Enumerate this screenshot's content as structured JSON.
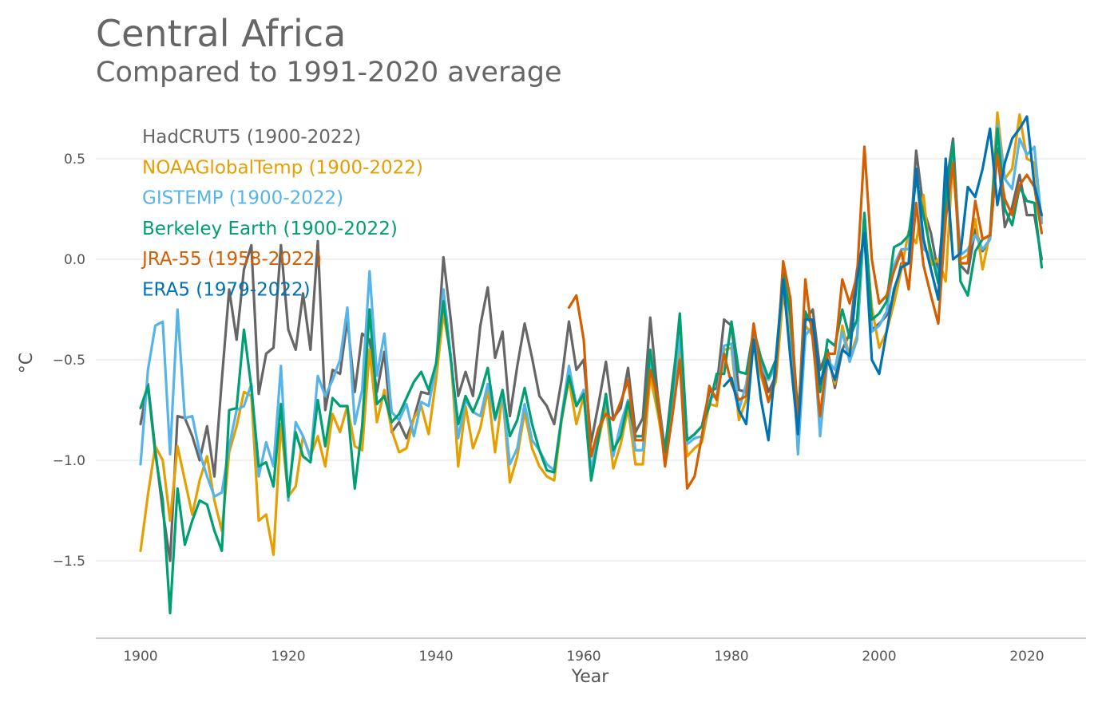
{
  "title": "Central Africa",
  "subtitle": "Compared to 1991-2020 average",
  "chart_data": {
    "type": "line",
    "title": "Central Africa",
    "subtitle": "Compared to 1991-2020 average",
    "xlabel": "Year",
    "ylabel": "°C",
    "xlim": [
      1897,
      2025
    ],
    "ylim": [
      -1.88,
      0.8
    ],
    "xticks": [
      1900,
      1920,
      1940,
      1960,
      1980,
      2000,
      2020
    ],
    "yticks": [
      0.5,
      0.0,
      -0.5,
      -1.0,
      -1.5
    ],
    "ytick_labels": [
      "0.5",
      "0.0",
      "−0.5",
      "−1.0",
      "−1.5"
    ],
    "grid": "horizontal",
    "legend_placement": "top-left",
    "series": [
      {
        "name": "HadCRUT5 (1900-2022)",
        "color": "#666666",
        "start": 1900,
        "values": [
          -0.82,
          -0.62,
          -0.95,
          -1.25,
          -1.5,
          -0.78,
          -0.79,
          -0.88,
          -1.0,
          -0.83,
          -1.08,
          -0.6,
          -0.15,
          -0.4,
          -0.05,
          0.07,
          -0.67,
          -0.47,
          -0.44,
          0.07,
          -0.35,
          -0.45,
          -0.17,
          -0.45,
          0.09,
          -0.75,
          -0.55,
          -0.57,
          -0.3,
          -0.66,
          -0.37,
          -0.4,
          -0.66,
          -0.46,
          -0.86,
          -0.81,
          -0.89,
          -0.79,
          -0.66,
          -0.67,
          -0.55,
          0.01,
          -0.3,
          -0.68,
          -0.56,
          -0.68,
          -0.33,
          -0.14,
          -0.49,
          -0.36,
          -0.78,
          -0.53,
          -0.32,
          -0.49,
          -0.68,
          -0.73,
          -0.82,
          -0.6,
          -0.31,
          -0.55,
          -0.5,
          -0.91,
          -0.72,
          -0.51,
          -0.79,
          -0.74,
          -0.54,
          -0.86,
          -0.79,
          -0.29,
          -0.67,
          -0.95,
          -0.62,
          -0.32,
          -0.9,
          -0.87,
          -0.83,
          -0.66,
          -0.64,
          -0.3,
          -0.33,
          -0.65,
          -0.66,
          -0.37,
          -0.52,
          -0.66,
          -0.58,
          -0.1,
          -0.26,
          -0.77,
          -0.3,
          -0.25,
          -0.55,
          -0.45,
          -0.64,
          -0.45,
          -0.37,
          -0.05,
          0.1,
          -0.35,
          -0.32,
          -0.28,
          -0.18,
          -0.02,
          -0.02,
          0.54,
          0.25,
          0.13,
          -0.07,
          0.35,
          0.6,
          -0.03,
          -0.07,
          0.15,
          0.04,
          0.1,
          0.55,
          0.16,
          0.26,
          0.42,
          0.22,
          0.22,
          0.0
        ]
      },
      {
        "name": "NOAAGlobalTemp (1900-2022)",
        "color": "#E69F00",
        "start": 1900,
        "values": [
          -1.45,
          -1.17,
          -0.93,
          -1.0,
          -1.3,
          -0.93,
          -1.1,
          -1.27,
          -1.1,
          -0.98,
          -1.2,
          -1.35,
          -0.96,
          -0.83,
          -0.66,
          -0.68,
          -1.3,
          -1.27,
          -1.47,
          -0.82,
          -1.18,
          -1.13,
          -0.88,
          -0.98,
          -0.88,
          -1.03,
          -0.77,
          -0.86,
          -0.73,
          -0.93,
          -0.95,
          -0.45,
          -0.81,
          -0.65,
          -0.85,
          -0.96,
          -0.94,
          -0.79,
          -0.73,
          -0.87,
          -0.6,
          -0.27,
          -0.48,
          -1.03,
          -0.73,
          -0.94,
          -0.84,
          -0.65,
          -0.96,
          -0.67,
          -1.11,
          -0.98,
          -0.76,
          -0.94,
          -1.03,
          -1.08,
          -1.1,
          -0.8,
          -0.6,
          -0.82,
          -0.68,
          -1.05,
          -0.9,
          -0.73,
          -1.04,
          -0.92,
          -0.74,
          -1.02,
          -1.02,
          -0.58,
          -0.76,
          -0.98,
          -0.75,
          -0.43,
          -0.98,
          -0.94,
          -0.91,
          -0.72,
          -0.73,
          -0.45,
          -0.44,
          -0.8,
          -0.7,
          -0.42,
          -0.58,
          -0.7,
          -0.61,
          -0.18,
          -0.35,
          -0.93,
          -0.33,
          -0.38,
          -0.79,
          -0.48,
          -0.62,
          -0.33,
          -0.49,
          -0.38,
          0.19,
          -0.24,
          -0.44,
          -0.36,
          -0.22,
          -0.05,
          0.14,
          0.08,
          0.32,
          -0.03,
          0.0,
          -0.11,
          0.52,
          0.0,
          0.02,
          0.2,
          -0.05,
          0.13,
          0.73,
          0.4,
          0.45,
          0.72,
          0.5,
          0.48,
          0.2
        ]
      },
      {
        "name": "GISTEMP (1900-2022)",
        "color": "#56B4E9",
        "start": 1900,
        "values": [
          -1.02,
          -0.55,
          -0.33,
          -0.31,
          -0.97,
          -0.25,
          -0.79,
          -0.78,
          -0.96,
          -1.08,
          -1.18,
          -1.16,
          -0.93,
          -0.75,
          -0.73,
          -0.62,
          -1.08,
          -0.91,
          -1.03,
          -0.53,
          -1.2,
          -0.81,
          -0.88,
          -0.99,
          -0.58,
          -0.68,
          -0.6,
          -0.5,
          -0.24,
          -0.82,
          -0.65,
          -0.06,
          -0.58,
          -0.37,
          -0.76,
          -0.8,
          -0.72,
          -0.88,
          -0.71,
          -0.73,
          -0.53,
          -0.15,
          -0.48,
          -0.89,
          -0.7,
          -0.76,
          -0.78,
          -0.62,
          -0.8,
          -0.67,
          -1.02,
          -0.94,
          -0.72,
          -0.9,
          -0.95,
          -1.02,
          -1.05,
          -0.78,
          -0.53,
          -0.73,
          -0.65,
          -1.05,
          -0.86,
          -0.69,
          -0.98,
          -0.82,
          -0.7,
          -0.95,
          -0.95,
          -0.52,
          -0.7,
          -0.96,
          -0.7,
          -0.38,
          -0.92,
          -0.89,
          -0.88,
          -0.69,
          -0.68,
          -0.43,
          -0.42,
          -0.75,
          -0.62,
          -0.37,
          -0.53,
          -0.6,
          -0.53,
          -0.11,
          -0.3,
          -0.97,
          -0.38,
          -0.33,
          -0.88,
          -0.5,
          -0.55,
          -0.36,
          -0.51,
          -0.4,
          0.2,
          -0.36,
          -0.33,
          -0.26,
          -0.03,
          0.05,
          0.05,
          0.45,
          0.05,
          0.02,
          -0.08,
          0.2,
          0.55,
          0.02,
          0.05,
          0.12,
          0.05,
          0.1,
          0.67,
          0.4,
          0.35,
          0.6,
          0.52,
          0.56,
          0.18
        ]
      },
      {
        "name": "Berkeley Earth (1900-2022)",
        "color": "#009E73",
        "start": 1900,
        "values": [
          -0.74,
          -0.63,
          -0.97,
          -1.2,
          -1.76,
          -1.14,
          -1.42,
          -1.3,
          -1.2,
          -1.22,
          -1.35,
          -1.45,
          -0.75,
          -0.74,
          -0.35,
          -0.64,
          -1.03,
          -1.01,
          -1.13,
          -0.72,
          -1.18,
          -0.86,
          -0.98,
          -1.01,
          -0.7,
          -0.93,
          -0.69,
          -0.73,
          -0.73,
          -1.14,
          -0.83,
          -0.25,
          -0.72,
          -0.68,
          -0.81,
          -0.77,
          -0.69,
          -0.61,
          -0.56,
          -0.65,
          -0.52,
          -0.21,
          -0.5,
          -0.82,
          -0.68,
          -0.76,
          -0.67,
          -0.54,
          -0.79,
          -0.65,
          -0.88,
          -0.8,
          -0.64,
          -0.82,
          -0.95,
          -1.05,
          -1.06,
          -0.79,
          -0.58,
          -0.73,
          -0.67,
          -1.1,
          -0.89,
          -0.67,
          -0.95,
          -0.88,
          -0.71,
          -0.88,
          -0.88,
          -0.45,
          -0.72,
          -0.96,
          -0.66,
          -0.27,
          -0.9,
          -0.87,
          -0.83,
          -0.73,
          -0.57,
          -0.57,
          -0.31,
          -0.56,
          -0.57,
          -0.35,
          -0.49,
          -0.59,
          -0.5,
          -0.07,
          -0.28,
          -0.79,
          -0.26,
          -0.34,
          -0.66,
          -0.4,
          -0.43,
          -0.25,
          -0.39,
          -0.3,
          0.23,
          -0.3,
          -0.27,
          -0.21,
          0.06,
          0.08,
          0.12,
          0.4,
          0.22,
          0.04,
          -0.12,
          0.3,
          0.58,
          -0.11,
          -0.18,
          0.04,
          0.1,
          0.12,
          0.65,
          0.25,
          0.17,
          0.36,
          0.29,
          0.28,
          -0.04
        ]
      },
      {
        "name": "JRA-55 (1958-2022)",
        "color": "#D55E00",
        "start": 1958,
        "values": [
          -0.24,
          -0.18,
          -0.4,
          -0.98,
          -0.84,
          -0.77,
          -0.8,
          -0.71,
          -0.6,
          -0.9,
          -0.9,
          -0.55,
          -0.68,
          -1.03,
          -0.78,
          -0.5,
          -1.14,
          -1.08,
          -0.88,
          -0.63,
          -0.7,
          -0.47,
          -0.62,
          -0.7,
          -0.68,
          -0.32,
          -0.55,
          -0.71,
          -0.58,
          -0.01,
          -0.2,
          -0.85,
          -0.1,
          -0.4,
          -0.78,
          -0.47,
          -0.47,
          -0.1,
          -0.22,
          -0.08,
          0.56,
          0.0,
          -0.22,
          -0.18,
          -0.06,
          0.04,
          -0.15,
          0.28,
          -0.03,
          -0.18,
          -0.32,
          0.2,
          0.48,
          -0.02,
          -0.02,
          0.29,
          0.1,
          0.12,
          0.52,
          0.3,
          0.22,
          0.37,
          0.42,
          0.36,
          0.13
        ]
      },
      {
        "name": "ERA5 (1979-2022)",
        "color": "#0072B2",
        "start": 1979,
        "values": [
          -0.63,
          -0.59,
          -0.75,
          -0.82,
          -0.4,
          -0.7,
          -0.9,
          -0.5,
          -0.1,
          -0.5,
          -0.87,
          -0.3,
          -0.3,
          -0.62,
          -0.5,
          -0.6,
          -0.45,
          -0.48,
          -0.1,
          0.13,
          -0.5,
          -0.57,
          -0.36,
          -0.15,
          -0.04,
          -0.02,
          0.45,
          0.1,
          -0.05,
          -0.2,
          0.5,
          0.0,
          0.03,
          0.36,
          0.31,
          0.45,
          0.65,
          0.27,
          0.48,
          0.6,
          0.65,
          0.71,
          0.37,
          0.22
        ]
      }
    ]
  }
}
